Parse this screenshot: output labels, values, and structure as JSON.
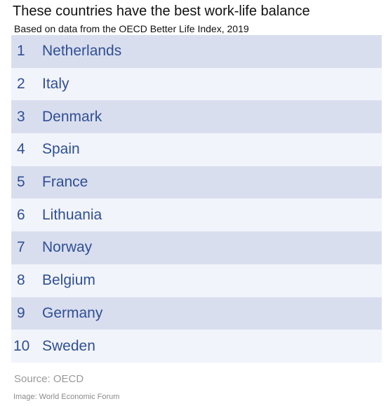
{
  "title": "These countries have the best work-life balance",
  "subtitle": "Based on data from the OECD Better Life Index, 2019",
  "rows": [
    {
      "rank": "1",
      "country": "Netherlands"
    },
    {
      "rank": "2",
      "country": "Italy"
    },
    {
      "rank": "3",
      "country": "Denmark"
    },
    {
      "rank": "4",
      "country": "Spain"
    },
    {
      "rank": "5",
      "country": "France"
    },
    {
      "rank": "6",
      "country": "Lithuania"
    },
    {
      "rank": "7",
      "country": "Norway"
    },
    {
      "rank": "8",
      "country": "Belgium"
    },
    {
      "rank": "9",
      "country": "Germany"
    },
    {
      "rank": "10",
      "country": "Sweden"
    }
  ],
  "source": "Source: OECD",
  "credit": "Image: World Economic Forum",
  "colors": {
    "accent_text": "#2f4f94",
    "row_dark": "#d9deef",
    "row_light": "#f2f4fb"
  }
}
